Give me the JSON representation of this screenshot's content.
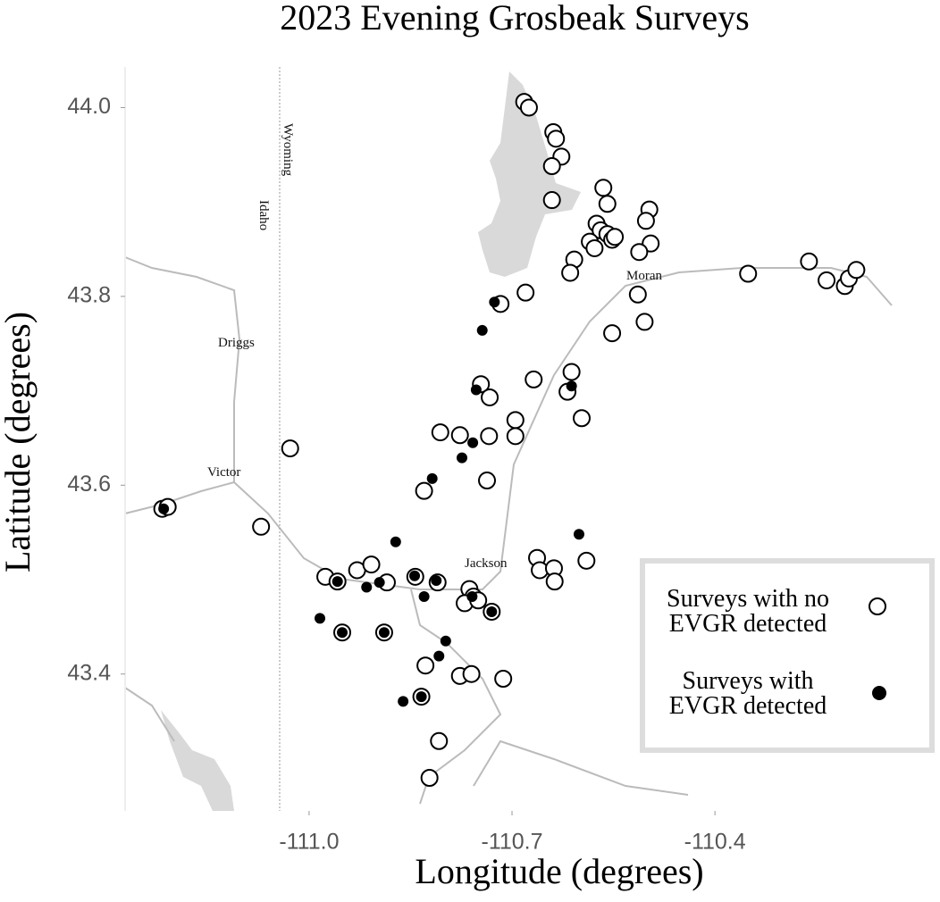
{
  "chart_data": {
    "type": "scatter",
    "title": "2023 Evening Grosbeak Surveys",
    "x_label": "Longitude (degrees)",
    "y_label": "Latitude (degrees)",
    "xlim": [
      -111.272,
      -110.136
    ],
    "ylim": [
      43.255,
      44.043
    ],
    "xticks": [
      {
        "value": -111,
        "label": "-111.0"
      },
      -110.7,
      -110.4
    ],
    "yticks": [
      {
        "value": 44,
        "label": "44.0"
      },
      43.8,
      43.6,
      43.4
    ],
    "grid": false,
    "legend": "bottom-right",
    "annotations": [
      "Wyoming",
      "Idaho",
      "Driggs",
      "Victor",
      "Moran",
      "Jackson"
    ],
    "series": [
      {
        "name": "Surveys with no EVGR detected",
        "color": "#000000",
        "marker": "open",
        "x": [
          -110.682,
          -110.675,
          -110.639,
          -110.635,
          -110.627,
          -110.641,
          -110.641,
          -110.565,
          -110.559,
          -110.497,
          -110.502,
          -110.575,
          -110.569,
          -110.559,
          -110.552,
          -110.585,
          -110.578,
          -110.548,
          -110.495,
          -110.512,
          -110.608,
          -110.614,
          -110.68,
          -110.717,
          -110.514,
          -110.504,
          -110.552,
          -110.351,
          -110.261,
          -110.235,
          -110.208,
          -110.202,
          -110.191,
          -110.612,
          -110.668,
          -110.618,
          -110.746,
          -110.733,
          -110.597,
          -110.695,
          -110.695,
          -110.806,
          -110.777,
          -110.734,
          -111.028,
          -110.83,
          -110.737,
          -111.071,
          -111.217,
          -111.209,
          -110.976,
          -110.958,
          -110.929,
          -110.908,
          -110.885,
          -110.843,
          -110.81,
          -110.763,
          -110.757,
          -110.77,
          -110.75,
          -110.73,
          -110.663,
          -110.659,
          -110.638,
          -110.637,
          -110.59,
          -110.951,
          -110.889,
          -110.828,
          -110.834,
          -110.777,
          -110.76,
          -110.713,
          -110.808,
          -110.822
        ],
        "y": [
          44.006,
          44.0,
          43.974,
          43.967,
          43.948,
          43.938,
          43.902,
          43.915,
          43.898,
          43.892,
          43.88,
          43.877,
          43.87,
          43.866,
          43.86,
          43.858,
          43.851,
          43.863,
          43.856,
          43.847,
          43.839,
          43.825,
          43.804,
          43.792,
          43.802,
          43.773,
          43.761,
          43.824,
          43.837,
          43.817,
          43.811,
          43.819,
          43.828,
          43.72,
          43.712,
          43.699,
          43.707,
          43.693,
          43.671,
          43.669,
          43.652,
          43.656,
          43.653,
          43.652,
          43.639,
          43.594,
          43.605,
          43.556,
          43.575,
          43.577,
          43.503,
          43.498,
          43.51,
          43.516,
          43.497,
          43.503,
          43.497,
          43.49,
          43.482,
          43.475,
          43.478,
          43.466,
          43.523,
          43.51,
          43.512,
          43.498,
          43.52,
          43.444,
          43.444,
          43.409,
          43.376,
          43.398,
          43.4,
          43.395,
          43.329,
          43.29
        ]
      },
      {
        "name": "Surveys with EVGR detected",
        "color": "#000000",
        "marker": "filled",
        "x": [
          -110.726,
          -110.744,
          -110.753,
          -110.612,
          -110.774,
          -110.818,
          -110.758,
          -110.872,
          -110.601,
          -110.984,
          -110.958,
          -110.951,
          -110.889,
          -110.915,
          -110.896,
          -110.844,
          -110.83,
          -110.812,
          -110.798,
          -110.808,
          -110.861,
          -110.834,
          -110.73,
          -110.759,
          -111.215
        ],
        "y": [
          43.794,
          43.764,
          43.701,
          43.705,
          43.629,
          43.607,
          43.645,
          43.54,
          43.548,
          43.459,
          43.498,
          43.444,
          43.444,
          43.492,
          43.497,
          43.504,
          43.482,
          43.499,
          43.435,
          43.419,
          43.371,
          43.376,
          43.466,
          43.482,
          43.575
        ]
      }
    ]
  }
}
